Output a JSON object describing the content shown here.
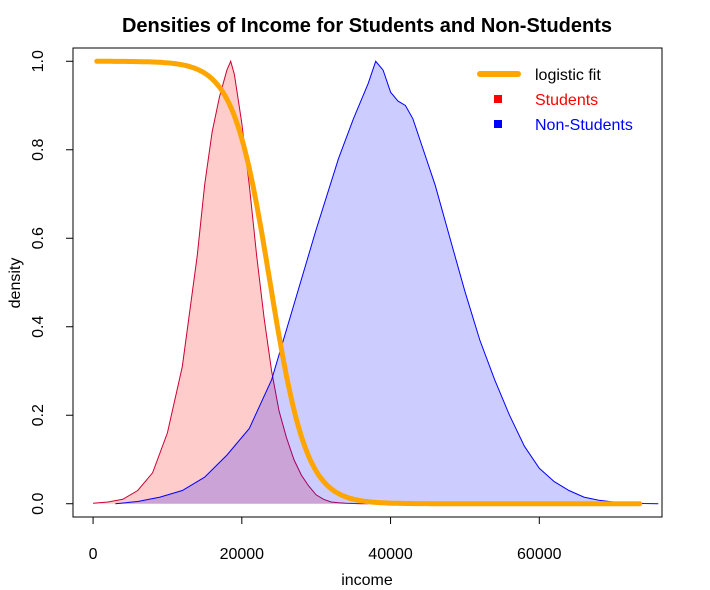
{
  "chart_data": {
    "type": "area",
    "title": "Densities of Income for Students and Non-Students",
    "xlabel": "income",
    "ylabel": "density",
    "xlim": [
      -2700,
      76500
    ],
    "ylim": [
      -0.03,
      1.03
    ],
    "x_ticks": [
      0,
      20000,
      40000,
      60000
    ],
    "x_tick_labels": [
      "0",
      "20000",
      "40000",
      "60000"
    ],
    "y_ticks": [
      0.0,
      0.2,
      0.4,
      0.6,
      0.8,
      1.0
    ],
    "y_tick_labels": [
      "0.0",
      "0.2",
      "0.4",
      "0.6",
      "0.8",
      "1.0"
    ],
    "grid": false,
    "legend_position": "top-right",
    "legend": [
      {
        "label": "logistic fit",
        "color": "#FFA500",
        "symbol": "line"
      },
      {
        "label": "Students",
        "color": "#FF0000",
        "symbol": "square"
      },
      {
        "label": "Non-Students",
        "color": "#0000FF",
        "symbol": "square"
      }
    ],
    "series": [
      {
        "name": "Students",
        "kind": "density",
        "stroke": "#CC0033",
        "fill": "rgba(255,0,0,0.2)",
        "x": [
          0,
          2000,
          4000,
          6000,
          8000,
          10000,
          12000,
          14000,
          15000,
          16000,
          17000,
          18000,
          18500,
          19000,
          20000,
          21000,
          22000,
          23000,
          24000,
          25000,
          26000,
          27000,
          28000,
          29000,
          30000,
          31000,
          32000,
          33000,
          34000,
          35000,
          36000,
          37000
        ],
        "y": [
          0.001,
          0.004,
          0.01,
          0.03,
          0.07,
          0.16,
          0.31,
          0.56,
          0.72,
          0.84,
          0.92,
          0.98,
          1.0,
          0.97,
          0.86,
          0.72,
          0.56,
          0.42,
          0.3,
          0.21,
          0.15,
          0.1,
          0.065,
          0.04,
          0.02,
          0.01,
          0.004,
          0.002,
          0.001,
          0.0005,
          0.0001,
          0.0
        ]
      },
      {
        "name": "Non-Students",
        "kind": "density",
        "stroke": "#0000FF",
        "fill": "rgba(0,0,255,0.2)",
        "x": [
          3000,
          6000,
          9000,
          12000,
          15000,
          18000,
          21000,
          24000,
          27000,
          30000,
          33000,
          35000,
          37000,
          38000,
          39000,
          40000,
          41000,
          42000,
          43000,
          44000,
          46000,
          48000,
          50000,
          52000,
          54000,
          56000,
          58000,
          60000,
          62000,
          64000,
          66000,
          68000,
          70000,
          72000,
          74000,
          76000
        ],
        "y": [
          0.0,
          0.005,
          0.015,
          0.03,
          0.06,
          0.11,
          0.17,
          0.28,
          0.45,
          0.62,
          0.78,
          0.87,
          0.95,
          1.0,
          0.98,
          0.93,
          0.91,
          0.9,
          0.87,
          0.82,
          0.72,
          0.6,
          0.48,
          0.37,
          0.28,
          0.2,
          0.13,
          0.08,
          0.05,
          0.03,
          0.015,
          0.008,
          0.004,
          0.002,
          0.0005,
          0.0
        ]
      },
      {
        "name": "logistic fit",
        "kind": "logistic",
        "stroke": "#FFA500",
        "midpoint": 23800,
        "scale": 2450,
        "x_range": [
          500,
          73500
        ]
      }
    ]
  }
}
